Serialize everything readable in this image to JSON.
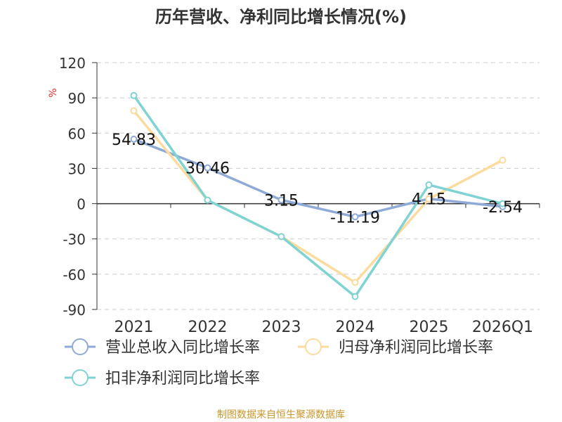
{
  "chart_data": {
    "type": "line",
    "title": "历年营收、净利同比增长情况(%)",
    "ylabel": "%",
    "xlabel": "",
    "categories": [
      "2021",
      "2022",
      "2023",
      "2024",
      "2025",
      "2026Q1"
    ],
    "ylim": [
      -90,
      120
    ],
    "yticks": [
      "120",
      "90",
      "60",
      "30",
      "0",
      "-30",
      "-60",
      "-90"
    ],
    "grid": true,
    "legend_position": "bottom",
    "series": [
      {
        "name": "营业总收入同比增长率",
        "color": "#8eaad6",
        "values": [
          54.83,
          30.46,
          3.15,
          -11.19,
          4.15,
          -2.54
        ],
        "labels": [
          "54.83",
          "30.46",
          "3.15",
          "-11.19",
          "4.15",
          "-2.54"
        ]
      },
      {
        "name": "归母净利润同比增长率",
        "color": "#fbdb9e",
        "values": [
          79,
          3,
          -28,
          -67,
          4,
          37
        ],
        "labels": null
      },
      {
        "name": "扣非净利润同比增长率",
        "color": "#7fd3d3",
        "values": [
          92,
          3,
          -28,
          -79,
          16,
          0
        ],
        "labels": null
      }
    ]
  },
  "footer": {
    "source": "制图数据来自恒生聚源数据库"
  },
  "colors": {
    "title": "#333333",
    "axis_text": "#333333",
    "ylabel": "#e03030",
    "footer": "#c8962a",
    "grid": "#cccccc",
    "axis": "#333333"
  }
}
